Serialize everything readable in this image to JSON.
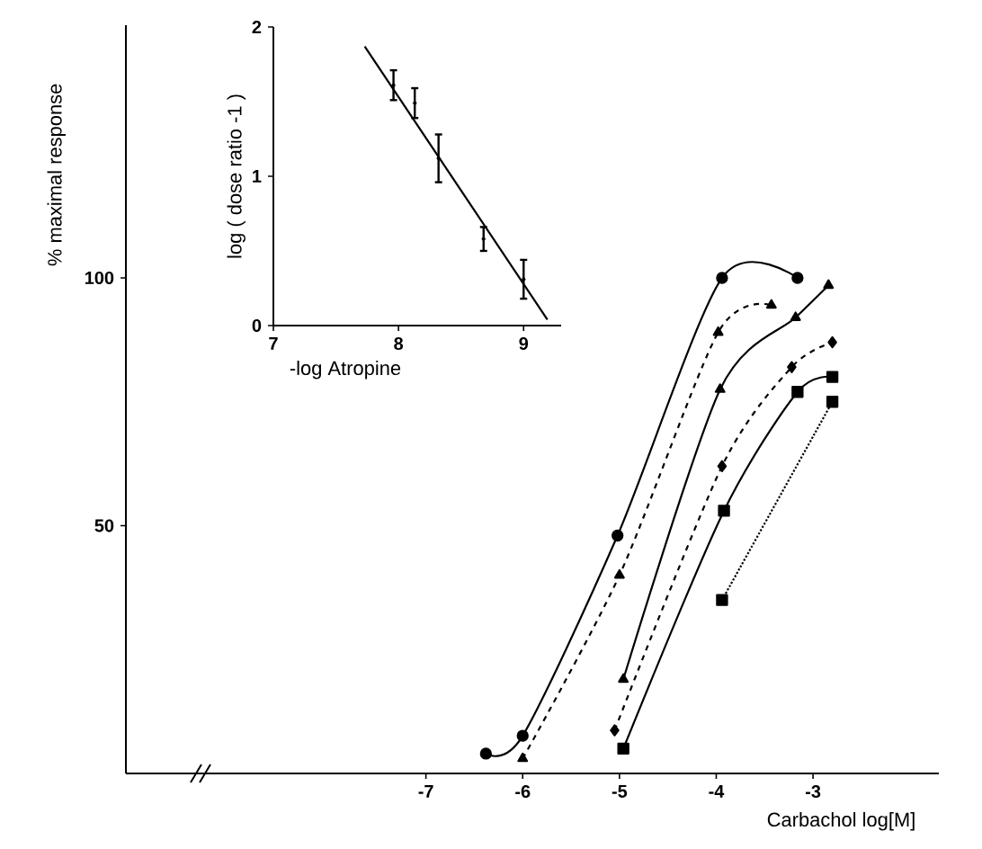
{
  "chart_data": [
    {
      "type": "line",
      "xlabel": "Carbachol log[M]",
      "ylabel": "% maximal response",
      "xlim": [
        -10.1,
        -1.7
      ],
      "ylim": [
        0,
        151
      ],
      "xticks": [
        -7,
        -6,
        -5,
        -4,
        -3
      ],
      "yticks": [
        50,
        100
      ],
      "series": [
        {
          "color": "#000000",
          "marker": "circle",
          "line_style": "solid",
          "x": [
            -6.38,
            -6.0,
            -5.02,
            -3.94,
            -3.16
          ],
          "values": [
            4,
            7.6,
            48,
            100,
            100
          ]
        },
        {
          "color": "#000000",
          "marker": "triangle",
          "line_style": "dashed",
          "x": [
            -6.0,
            -5.0,
            -3.98,
            -3.43
          ],
          "values": [
            3,
            40,
            89,
            94.5
          ]
        },
        {
          "color": "#000000",
          "marker": "triangle",
          "line_style": "solid",
          "x": [
            -4.96,
            -3.96,
            -3.18,
            -2.84
          ],
          "values": [
            19,
            77.5,
            92,
            98.5
          ]
        },
        {
          "color": "#000000",
          "marker": "diamond",
          "line_style": "dashed",
          "x": [
            -5.05,
            -3.94,
            -3.22,
            -2.8
          ],
          "values": [
            8.7,
            62,
            82,
            87
          ]
        },
        {
          "color": "#000000",
          "marker": "square",
          "line_style": "solid",
          "x": [
            -4.96,
            -3.92,
            -3.16,
            -2.8
          ],
          "values": [
            5,
            53,
            77,
            80
          ]
        },
        {
          "color": "#000000",
          "marker": "square",
          "line_style": "dotted",
          "x": [
            -3.94,
            -2.8
          ],
          "values": [
            35,
            75
          ]
        }
      ]
    },
    {
      "type": "scatter",
      "xlabel": "-log Atropine",
      "ylabel": "log ( dose ratio -1 )",
      "xlim": [
        7,
        9.3
      ],
      "ylim": [
        0,
        2
      ],
      "xticks": [
        7,
        8,
        9
      ],
      "yticks": [
        0,
        1,
        2
      ],
      "series": [
        {
          "type": "scatter",
          "color": "#000000",
          "marker": "diamond",
          "x": [
            7.96,
            8.13,
            8.32,
            8.68,
            9.0
          ],
          "values": [
            1.61,
            1.49,
            1.12,
            0.58,
            0.31
          ],
          "errors": [
            0.1,
            0.1,
            0.16,
            0.08,
            0.13
          ]
        },
        {
          "type": "line",
          "color": "#000000",
          "marker": "none",
          "line_style": "solid",
          "x": [
            7.73,
            9.19
          ],
          "values": [
            1.87,
            0.04
          ]
        }
      ]
    }
  ]
}
